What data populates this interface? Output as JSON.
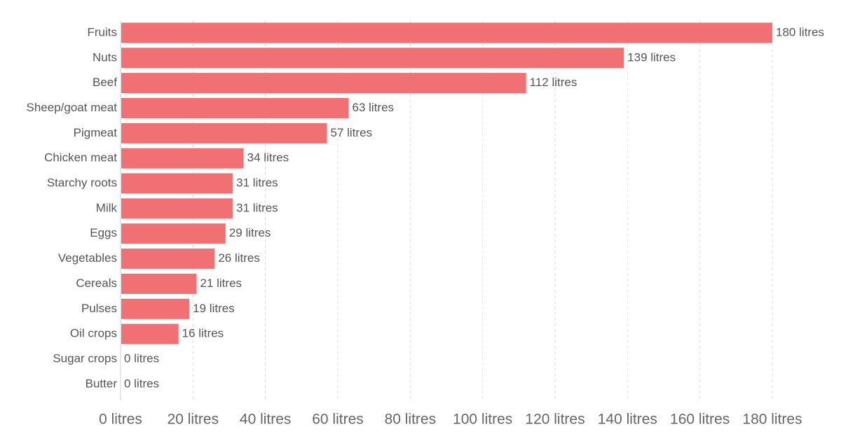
{
  "chart_data": {
    "type": "bar",
    "orientation": "horizontal",
    "title": "",
    "xlabel": "",
    "ylabel": "",
    "unit": "litres",
    "categories": [
      "Fruits",
      "Nuts",
      "Beef",
      "Sheep/goat meat",
      "Pigmeat",
      "Chicken meat",
      "Starchy roots",
      "Milk",
      "Eggs",
      "Vegetables",
      "Cereals",
      "Pulses",
      "Oil crops",
      "Sugar crops",
      "Butter"
    ],
    "values": [
      180,
      139,
      112,
      63,
      57,
      34,
      31,
      31,
      29,
      26,
      21,
      19,
      16,
      0,
      0
    ],
    "value_labels": [
      "180 litres",
      "139 litres",
      "112 litres",
      "63 litres",
      "57 litres",
      "34 litres",
      "31 litres",
      "31 litres",
      "29 litres",
      "26 litres",
      "21 litres",
      "19 litres",
      "16 litres",
      "0 litres",
      "0 litres"
    ],
    "xlim": [
      0,
      180
    ],
    "x_ticks": [
      0,
      20,
      40,
      60,
      80,
      100,
      120,
      140,
      160,
      180
    ],
    "x_tick_labels": [
      "0 litres",
      "20 litres",
      "40 litres",
      "60 litres",
      "80 litres",
      "100 litres",
      "120 litres",
      "140 litres",
      "160 litres",
      "180 litres"
    ],
    "grid": "vertical-dashed",
    "legend": "none",
    "colors": {
      "bar": "#f07073",
      "grid": "#dddddd",
      "axis": "#cccccc",
      "text": "#555555"
    }
  }
}
